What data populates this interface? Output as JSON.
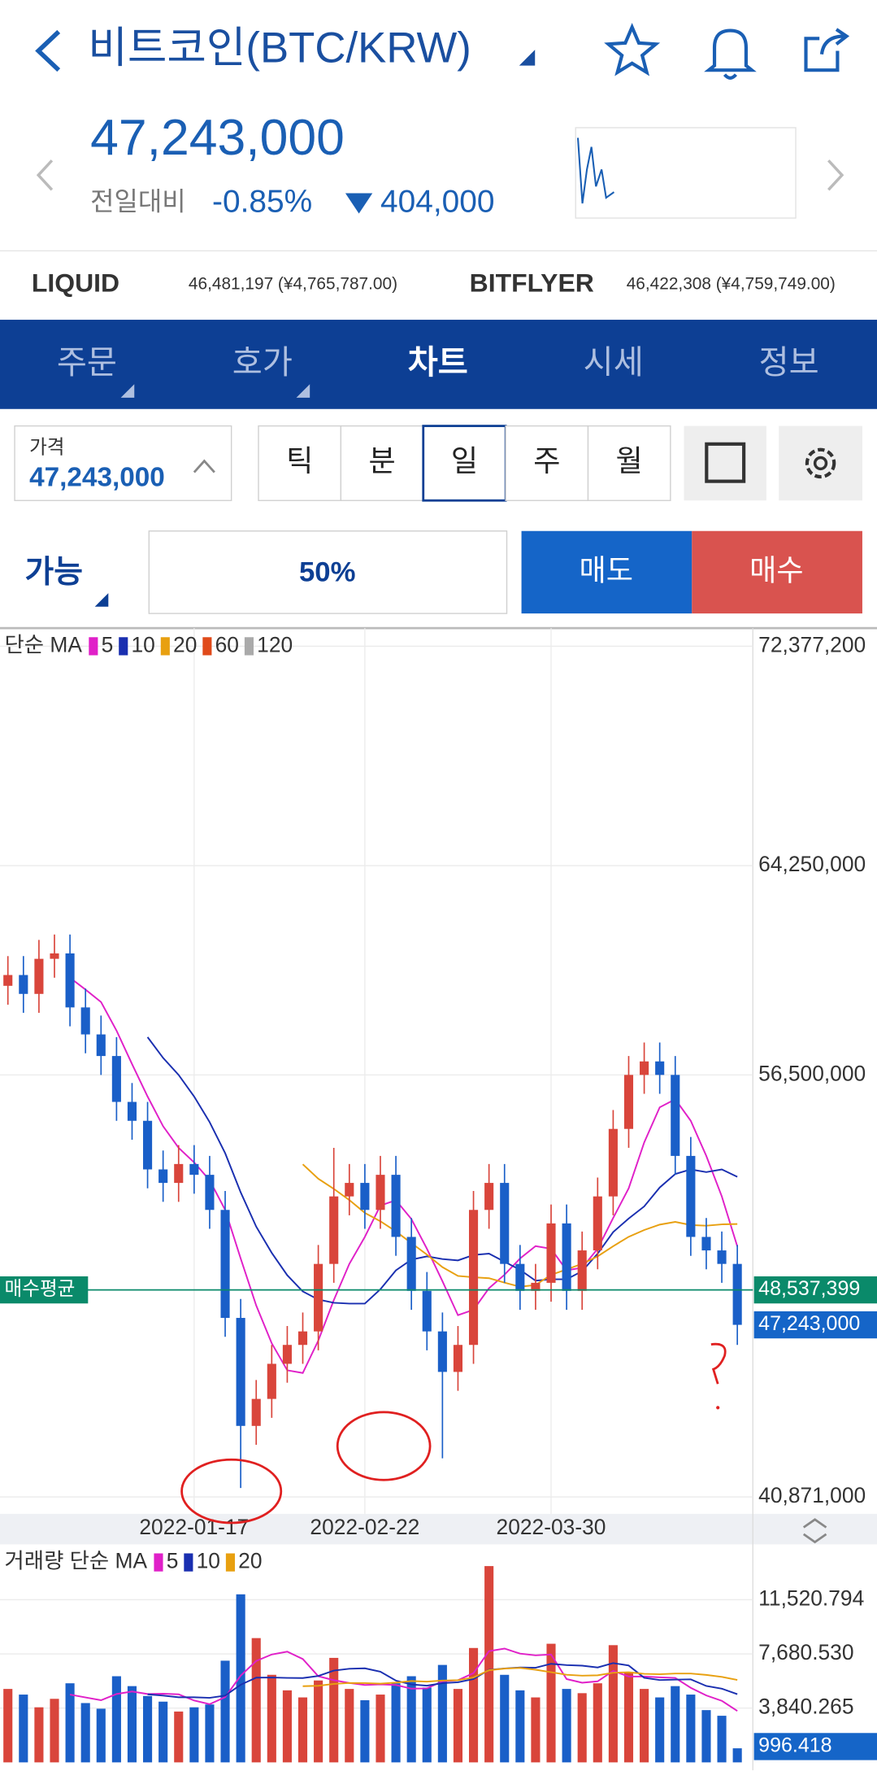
{
  "header": {
    "title": "비트코인(BTC/KRW)",
    "price": "47,243,000",
    "change_label": "전일대비",
    "change_pct": "-0.85%",
    "change_amt": "404,000"
  },
  "exchanges": [
    {
      "name": "LIQUID",
      "quote": "46,481,197 (¥4,765,787.00)"
    },
    {
      "name": "BITFLYER",
      "quote": "46,422,308 (¥4,759,749.00)"
    }
  ],
  "tabs": [
    "주문",
    "호가",
    "차트",
    "시세",
    "정보"
  ],
  "price_box": {
    "label": "가격",
    "value": "47,243,000"
  },
  "periods": [
    "틱",
    "분",
    "일",
    "주",
    "월"
  ],
  "order": {
    "available": "가능",
    "ratio": "50%",
    "sell": "매도",
    "buy": "매수"
  },
  "chart_data": {
    "type": "candlestick",
    "legend_label": "단순 MA",
    "ma": [
      {
        "period": 5,
        "color": "#e020c8"
      },
      {
        "period": 10,
        "color": "#1a2fb0"
      },
      {
        "period": 20,
        "color": "#e8a010"
      },
      {
        "period": 60,
        "color": "#e04a1a"
      },
      {
        "period": 120,
        "color": "#aaaaaa"
      }
    ],
    "up_color": "#d9453b",
    "down_color": "#1a5fc8",
    "categories": [
      null,
      null,
      null,
      null,
      null,
      null,
      null,
      null,
      null,
      null,
      null,
      null,
      "2022-01-17",
      null,
      null,
      null,
      null,
      null,
      null,
      null,
      null,
      null,
      null,
      "2022-02-22",
      null,
      null,
      null,
      null,
      null,
      null,
      null,
      null,
      null,
      null,
      null,
      "2022-03-30",
      null,
      null,
      null,
      null,
      null,
      null,
      null,
      null,
      null,
      null,
      null,
      null
    ],
    "opens": [
      59800000,
      60200000,
      59500000,
      60800000,
      61000000,
      59000000,
      58000000,
      57200000,
      55500000,
      54800000,
      53000000,
      52500000,
      53200000,
      52800000,
      51500000,
      47500000,
      43500000,
      44500000,
      45800000,
      46500000,
      47000000,
      49500000,
      52000000,
      52500000,
      51500000,
      52800000,
      50500000,
      48500000,
      47000000,
      45500000,
      46500000,
      51500000,
      52500000,
      49500000,
      48500000,
      48800000,
      51000000,
      48500000,
      50000000,
      52000000,
      54500000,
      56500000,
      57000000,
      56500000,
      53500000,
      50500000,
      50000000,
      49500000
    ],
    "highs": [
      60900000,
      60900000,
      61500000,
      61700000,
      61700000,
      59700000,
      58700000,
      57900000,
      56200000,
      55500000,
      53700000,
      53900000,
      53900000,
      53500000,
      52200000,
      48200000,
      45200000,
      46500000,
      47200000,
      47700000,
      50200000,
      53800000,
      53200000,
      53200000,
      53500000,
      53500000,
      51200000,
      49200000,
      47700000,
      47200000,
      52200000,
      53200000,
      53200000,
      50200000,
      49500000,
      51700000,
      51700000,
      50700000,
      52700000,
      55200000,
      57200000,
      57700000,
      57700000,
      57200000,
      54200000,
      51200000,
      50700000,
      50200000
    ],
    "lows": [
      59100000,
      58800000,
      58800000,
      60100000,
      58300000,
      57300000,
      56500000,
      54800000,
      54100000,
      52300000,
      51800000,
      51800000,
      52100000,
      50800000,
      46800000,
      41200000,
      42800000,
      43800000,
      45100000,
      45800000,
      46300000,
      48800000,
      51300000,
      50800000,
      50800000,
      49800000,
      47800000,
      46300000,
      42300000,
      44800000,
      45800000,
      50800000,
      48800000,
      47800000,
      47800000,
      48100000,
      47800000,
      47800000,
      49300000,
      51300000,
      53800000,
      55800000,
      55800000,
      52800000,
      49800000,
      49300000,
      48800000,
      46500000
    ],
    "closes": [
      60200000,
      59500000,
      60800000,
      61000000,
      59000000,
      58000000,
      57200000,
      55500000,
      54800000,
      53000000,
      52500000,
      53200000,
      52800000,
      51500000,
      47500000,
      43500000,
      44500000,
      45800000,
      46500000,
      47000000,
      49500000,
      52000000,
      52500000,
      51500000,
      52800000,
      50500000,
      48500000,
      47000000,
      45500000,
      46500000,
      51500000,
      52500000,
      49500000,
      48500000,
      48800000,
      51000000,
      48500000,
      50000000,
      52000000,
      54500000,
      56500000,
      57000000,
      56500000,
      53500000,
      50500000,
      50000000,
      49500000,
      47243000
    ],
    "ylim": [
      40871000,
      72377200
    ],
    "yticks": [
      {
        "value": 40871000,
        "label": "40,871,000"
      },
      {
        "value": 56500000,
        "label": "56,500,000"
      },
      {
        "value": 64250000,
        "label": "64,250,000"
      },
      {
        "value": 72377200,
        "label": "72,377,200"
      }
    ],
    "avg_line": {
      "label": "매수평균",
      "value": 48537399,
      "value_label": "48,537,399",
      "color": "#0a8a6a"
    },
    "current": {
      "value": 47243000,
      "label": "47,243,000"
    },
    "volume": {
      "legend_label": "거래량 단순 MA",
      "ma": [
        {
          "period": 5,
          "color": "#e020c8"
        },
        {
          "period": 10,
          "color": "#1a2fb0"
        },
        {
          "period": 20,
          "color": "#e8a010"
        }
      ],
      "values": [
        5200,
        4800,
        3900,
        4500,
        5600,
        4200,
        3800,
        6100,
        5400,
        4700,
        4300,
        3600,
        3900,
        4100,
        7200,
        11900,
        8800,
        6200,
        5100,
        4600,
        5800,
        7400,
        5200,
        4400,
        4800,
        5600,
        6100,
        5300,
        6900,
        5200,
        8100,
        13900,
        6200,
        5100,
        4600,
        8400,
        5200,
        4900,
        5600,
        8300,
        6400,
        5200,
        4600,
        5400,
        4800,
        3700,
        3300,
        996.418
      ],
      "ylim": [
        0,
        15360
      ],
      "yticks": [
        {
          "value": 3840.265,
          "label": "3,840.265"
        },
        {
          "value": 7680.53,
          "label": "7,680.530"
        },
        {
          "value": 11520.794,
          "label": "11,520.794"
        }
      ]
    }
  }
}
